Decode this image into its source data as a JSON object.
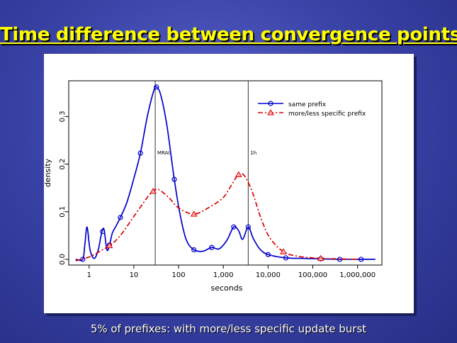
{
  "slide": {
    "title": "Time difference between convergence points",
    "caption": "5% of prefixes: with more/less specific update burst"
  },
  "colors": {
    "title": "#ffff00",
    "background": "#3b44a8",
    "same_prefix": "#0000cc",
    "specific_prefix": "#dd0000"
  },
  "chart_data": {
    "type": "line",
    "xlabel": "seconds",
    "ylabel": "density",
    "x_scale": "log10",
    "xlim": [
      0.35,
      3500000
    ],
    "ylim": [
      -0.012,
      0.375
    ],
    "x_ticks": [
      {
        "value": 1,
        "label": "1"
      },
      {
        "value": 10,
        "label": "10"
      },
      {
        "value": 100,
        "label": "100"
      },
      {
        "value": 1000,
        "label": "1,000"
      },
      {
        "value": 10000,
        "label": "10,000"
      },
      {
        "value": 100000,
        "label": "100,000"
      },
      {
        "value": 1000000,
        "label": "1,000,000"
      }
    ],
    "y_ticks": [
      {
        "value": 0.0,
        "label": "0.0"
      },
      {
        "value": 0.1,
        "label": "0.1"
      },
      {
        "value": 0.2,
        "label": "0.2"
      },
      {
        "value": 0.3,
        "label": "0.3"
      }
    ],
    "vlines": [
      {
        "x": 30,
        "label": "MRAI"
      },
      {
        "x": 3600,
        "label": "1h"
      }
    ],
    "legend": {
      "position": "top-right"
    },
    "series": [
      {
        "name": "same prefix",
        "color": "#0000cc",
        "line_style": "solid",
        "marker": "circle",
        "points": [
          [
            0.5,
            0.0
          ],
          [
            0.72,
            0.0
          ],
          [
            0.8,
            0.03
          ],
          [
            0.9,
            0.068
          ],
          [
            1.05,
            0.02
          ],
          [
            1.3,
            0.002
          ],
          [
            1.6,
            0.02
          ],
          [
            1.9,
            0.055
          ],
          [
            2.15,
            0.063
          ],
          [
            2.5,
            0.02
          ],
          [
            2.85,
            0.03
          ],
          [
            3.3,
            0.055
          ],
          [
            4.0,
            0.07
          ],
          [
            5.0,
            0.088
          ],
          [
            7.0,
            0.12
          ],
          [
            10.0,
            0.17
          ],
          [
            14.0,
            0.223
          ],
          [
            20.0,
            0.3
          ],
          [
            28.0,
            0.355
          ],
          [
            32.0,
            0.362
          ],
          [
            40.0,
            0.345
          ],
          [
            55.0,
            0.28
          ],
          [
            80.0,
            0.168
          ],
          [
            110.0,
            0.09
          ],
          [
            150.0,
            0.04
          ],
          [
            220.0,
            0.02
          ],
          [
            350.0,
            0.017
          ],
          [
            550.0,
            0.025
          ],
          [
            800.0,
            0.022
          ],
          [
            1200.0,
            0.04
          ],
          [
            1700.0,
            0.068
          ],
          [
            2200.0,
            0.06
          ],
          [
            2700.0,
            0.042
          ],
          [
            3600.0,
            0.068
          ],
          [
            4600.0,
            0.045
          ],
          [
            6500.0,
            0.022
          ],
          [
            10000.0,
            0.01
          ],
          [
            25000.0,
            0.003
          ],
          [
            60000.0,
            0.002
          ],
          [
            150000.0,
            0.001
          ],
          [
            400000.0,
            0.0
          ],
          [
            1000000.0,
            0.0
          ],
          [
            2500000.0,
            0.0
          ]
        ],
        "markers": [
          0.72,
          2.0,
          2.85,
          5.0,
          14.0,
          32.0,
          80.0,
          220.0,
          550.0,
          1700.0,
          3600.0,
          10000.0,
          25000.0,
          150000.0,
          400000.0,
          1200000.0
        ]
      },
      {
        "name": "more/less specific prefix",
        "color": "#dd0000",
        "line_style": "dash-dot",
        "marker": "triangle",
        "points": [
          [
            0.5,
            -0.003
          ],
          [
            1.0,
            0.005
          ],
          [
            2.0,
            0.02
          ],
          [
            3.0,
            0.03
          ],
          [
            5.0,
            0.05
          ],
          [
            10.0,
            0.09
          ],
          [
            20.0,
            0.13
          ],
          [
            27.0,
            0.143
          ],
          [
            35.0,
            0.147
          ],
          [
            60.0,
            0.13
          ],
          [
            100.0,
            0.108
          ],
          [
            220.0,
            0.095
          ],
          [
            500.0,
            0.11
          ],
          [
            1000.0,
            0.13
          ],
          [
            1500.0,
            0.155
          ],
          [
            2200.0,
            0.178
          ],
          [
            3000.0,
            0.175
          ],
          [
            4500.0,
            0.14
          ],
          [
            7000.0,
            0.085
          ],
          [
            11000.0,
            0.045
          ],
          [
            22000.0,
            0.016
          ],
          [
            50000.0,
            0.006
          ],
          [
            150000.0,
            0.002
          ],
          [
            400000.0,
            0.001
          ],
          [
            1000000.0,
            0.0
          ]
        ],
        "markers": [
          2.85,
          27.0,
          220.0,
          2200.0,
          22000.0,
          150000.0
        ]
      }
    ]
  }
}
